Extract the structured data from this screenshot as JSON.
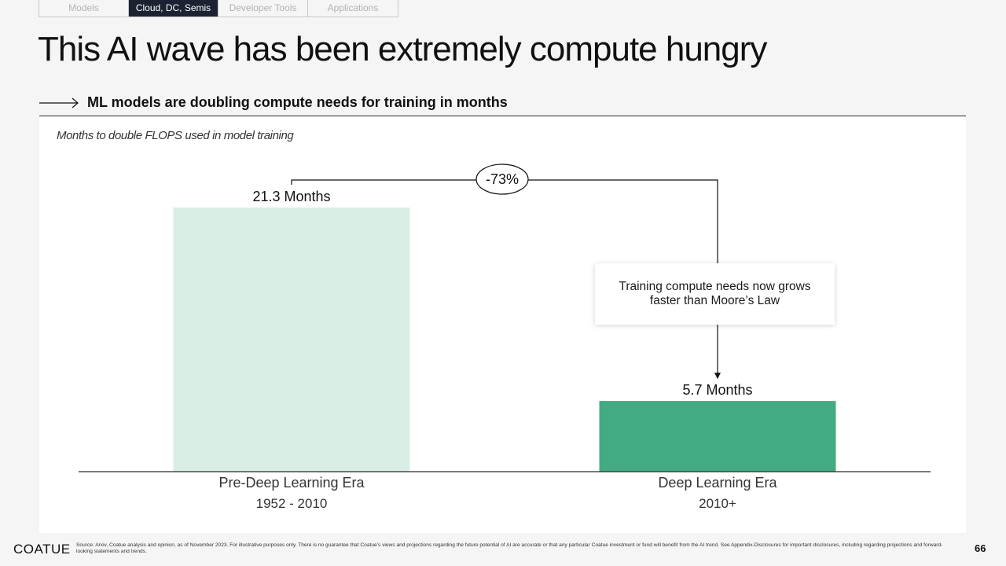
{
  "nav": {
    "tabs": [
      {
        "label": "Models",
        "active": false
      },
      {
        "label": "Cloud, DC, Semis",
        "active": true
      },
      {
        "label": "Developer Tools",
        "active": false
      },
      {
        "label": "Applications",
        "active": false
      }
    ]
  },
  "page_title": "This AI wave has been extremely compute hungry",
  "subhead": "ML models are doubling compute needs for training in months",
  "callout": "Training compute needs now grows faster than Moore’s Law",
  "footer": {
    "logo": "COATUE",
    "source": "Source: Arxiv, Coatue analysis and opinion, as of November 2023. For illustrative purposes only. There is no guarantee that Coatue’s views and projections regarding the future potential of AI are accurate or that any particular Coatue investment or fund will benefit from the AI trend. See Appendix-Disclosures for important disclosures, including regarding projections and forward-looking statements and trends.",
    "page_number": "66"
  },
  "chart_data": {
    "type": "bar",
    "title": "Months to double FLOPS used in model training",
    "categories": [
      "Pre-Deep Learning Era",
      "Deep Learning Era"
    ],
    "category_sublabels": [
      "1952 - 2010",
      "2010+"
    ],
    "values": [
      21.3,
      5.7
    ],
    "data_labels": [
      "21.3 Months",
      "5.7 Months"
    ],
    "bar_colors": [
      "#d8eee4",
      "#43ab82"
    ],
    "change_label": "-73%",
    "ylim": [
      0,
      21.3
    ],
    "grid": false,
    "legend": "none"
  }
}
